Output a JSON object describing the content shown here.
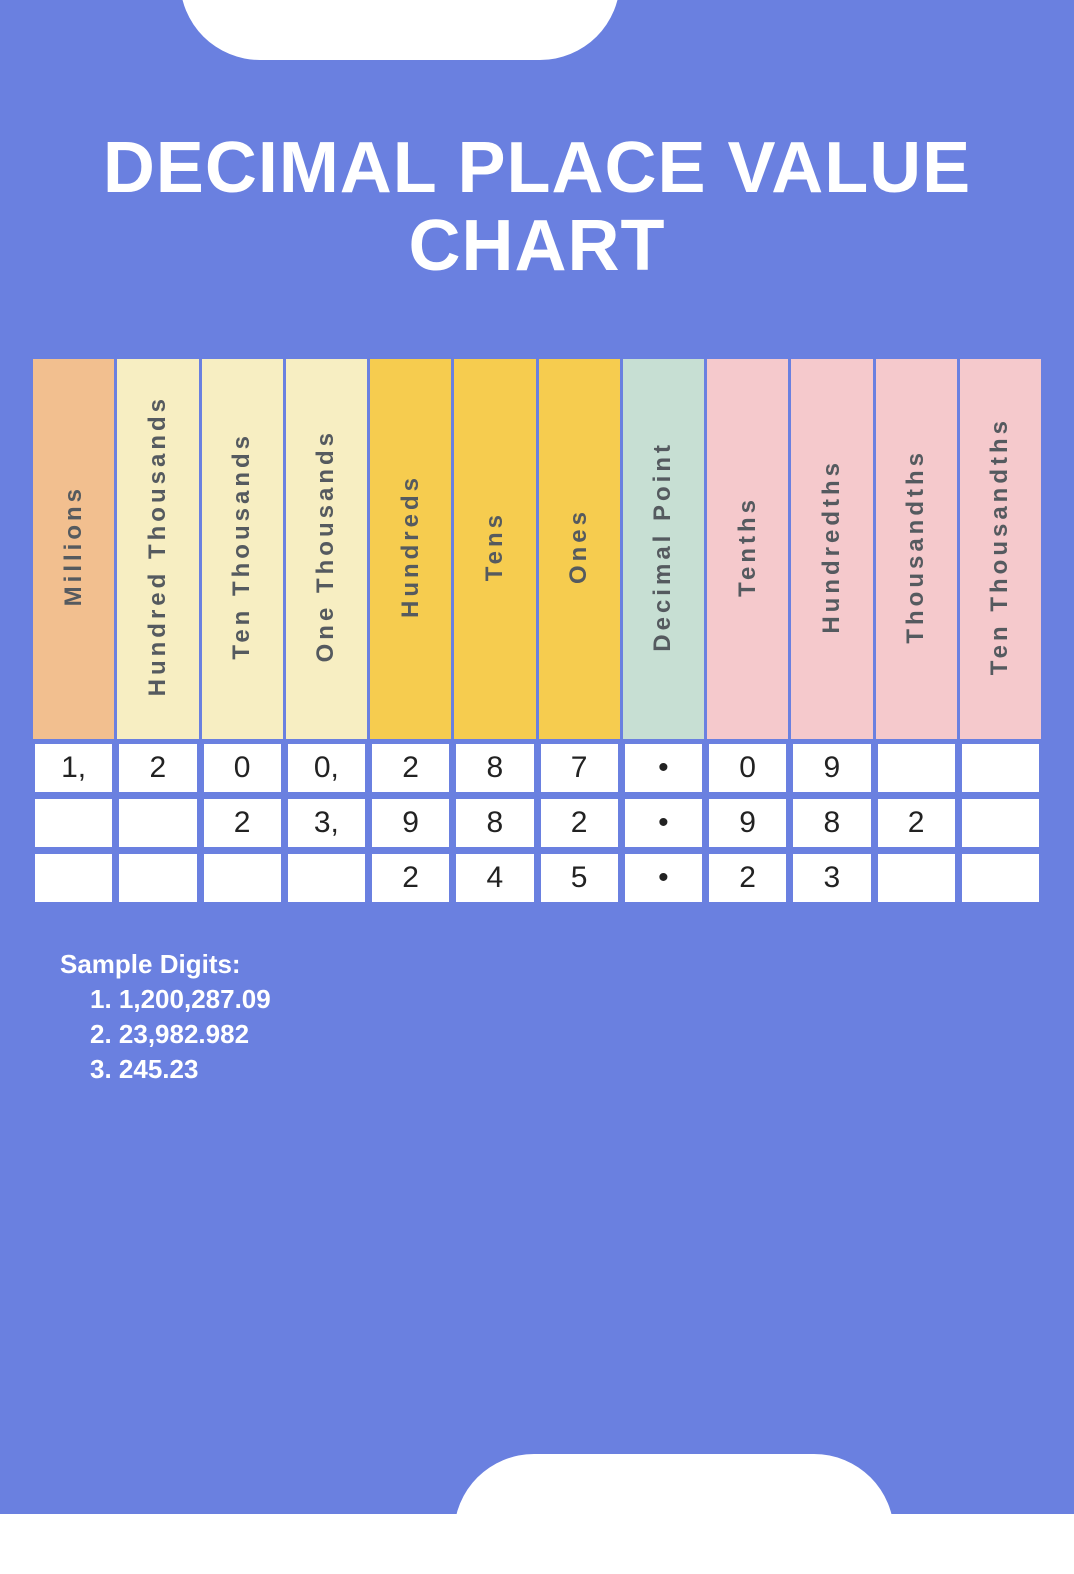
{
  "title": "DECIMAL PLACE VALUE CHART",
  "background_color": "#6a80e0",
  "cell_background": "#ffffff",
  "cell_border": "#6a80e0",
  "header_text_color": "#555a5f",
  "columns": [
    {
      "label": "Millions",
      "color": "#f2bf8f"
    },
    {
      "label": "Hundred Thousands",
      "color": "#f7eec2"
    },
    {
      "label": "Ten Thousands",
      "color": "#f7eec2"
    },
    {
      "label": "One Thousands",
      "color": "#f7eec2"
    },
    {
      "label": "Hundreds",
      "color": "#f6cc4f"
    },
    {
      "label": "Tens",
      "color": "#f6cc4f"
    },
    {
      "label": "Ones",
      "color": "#f6cc4f"
    },
    {
      "label": "Decimal Point",
      "color": "#c7dfd3"
    },
    {
      "label": "Tenths",
      "color": "#f5c9cc"
    },
    {
      "label": "Hundredths",
      "color": "#f5c9cc"
    },
    {
      "label": "Thousandths",
      "color": "#f5c9cc"
    },
    {
      "label": "Ten Thousandths",
      "color": "#f5c9cc"
    }
  ],
  "rows": [
    [
      "1,",
      "2",
      "0",
      "0,",
      "2",
      "8",
      "7",
      "•",
      "0",
      "9",
      "",
      ""
    ],
    [
      "",
      "",
      "2",
      "3,",
      "9",
      "8",
      "2",
      "•",
      "9",
      "8",
      "2",
      ""
    ],
    [
      "",
      "",
      "",
      "",
      "2",
      "4",
      "5",
      "•",
      "2",
      "3",
      "",
      ""
    ]
  ],
  "samples": {
    "heading": "Sample Digits:",
    "items": [
      "1. 1,200,287.09",
      "2. 23,982.982",
      "3. 245.23"
    ]
  },
  "typography": {
    "title_fontsize": 72,
    "header_fontsize": 24,
    "cell_fontsize": 30,
    "samples_fontsize": 26
  }
}
